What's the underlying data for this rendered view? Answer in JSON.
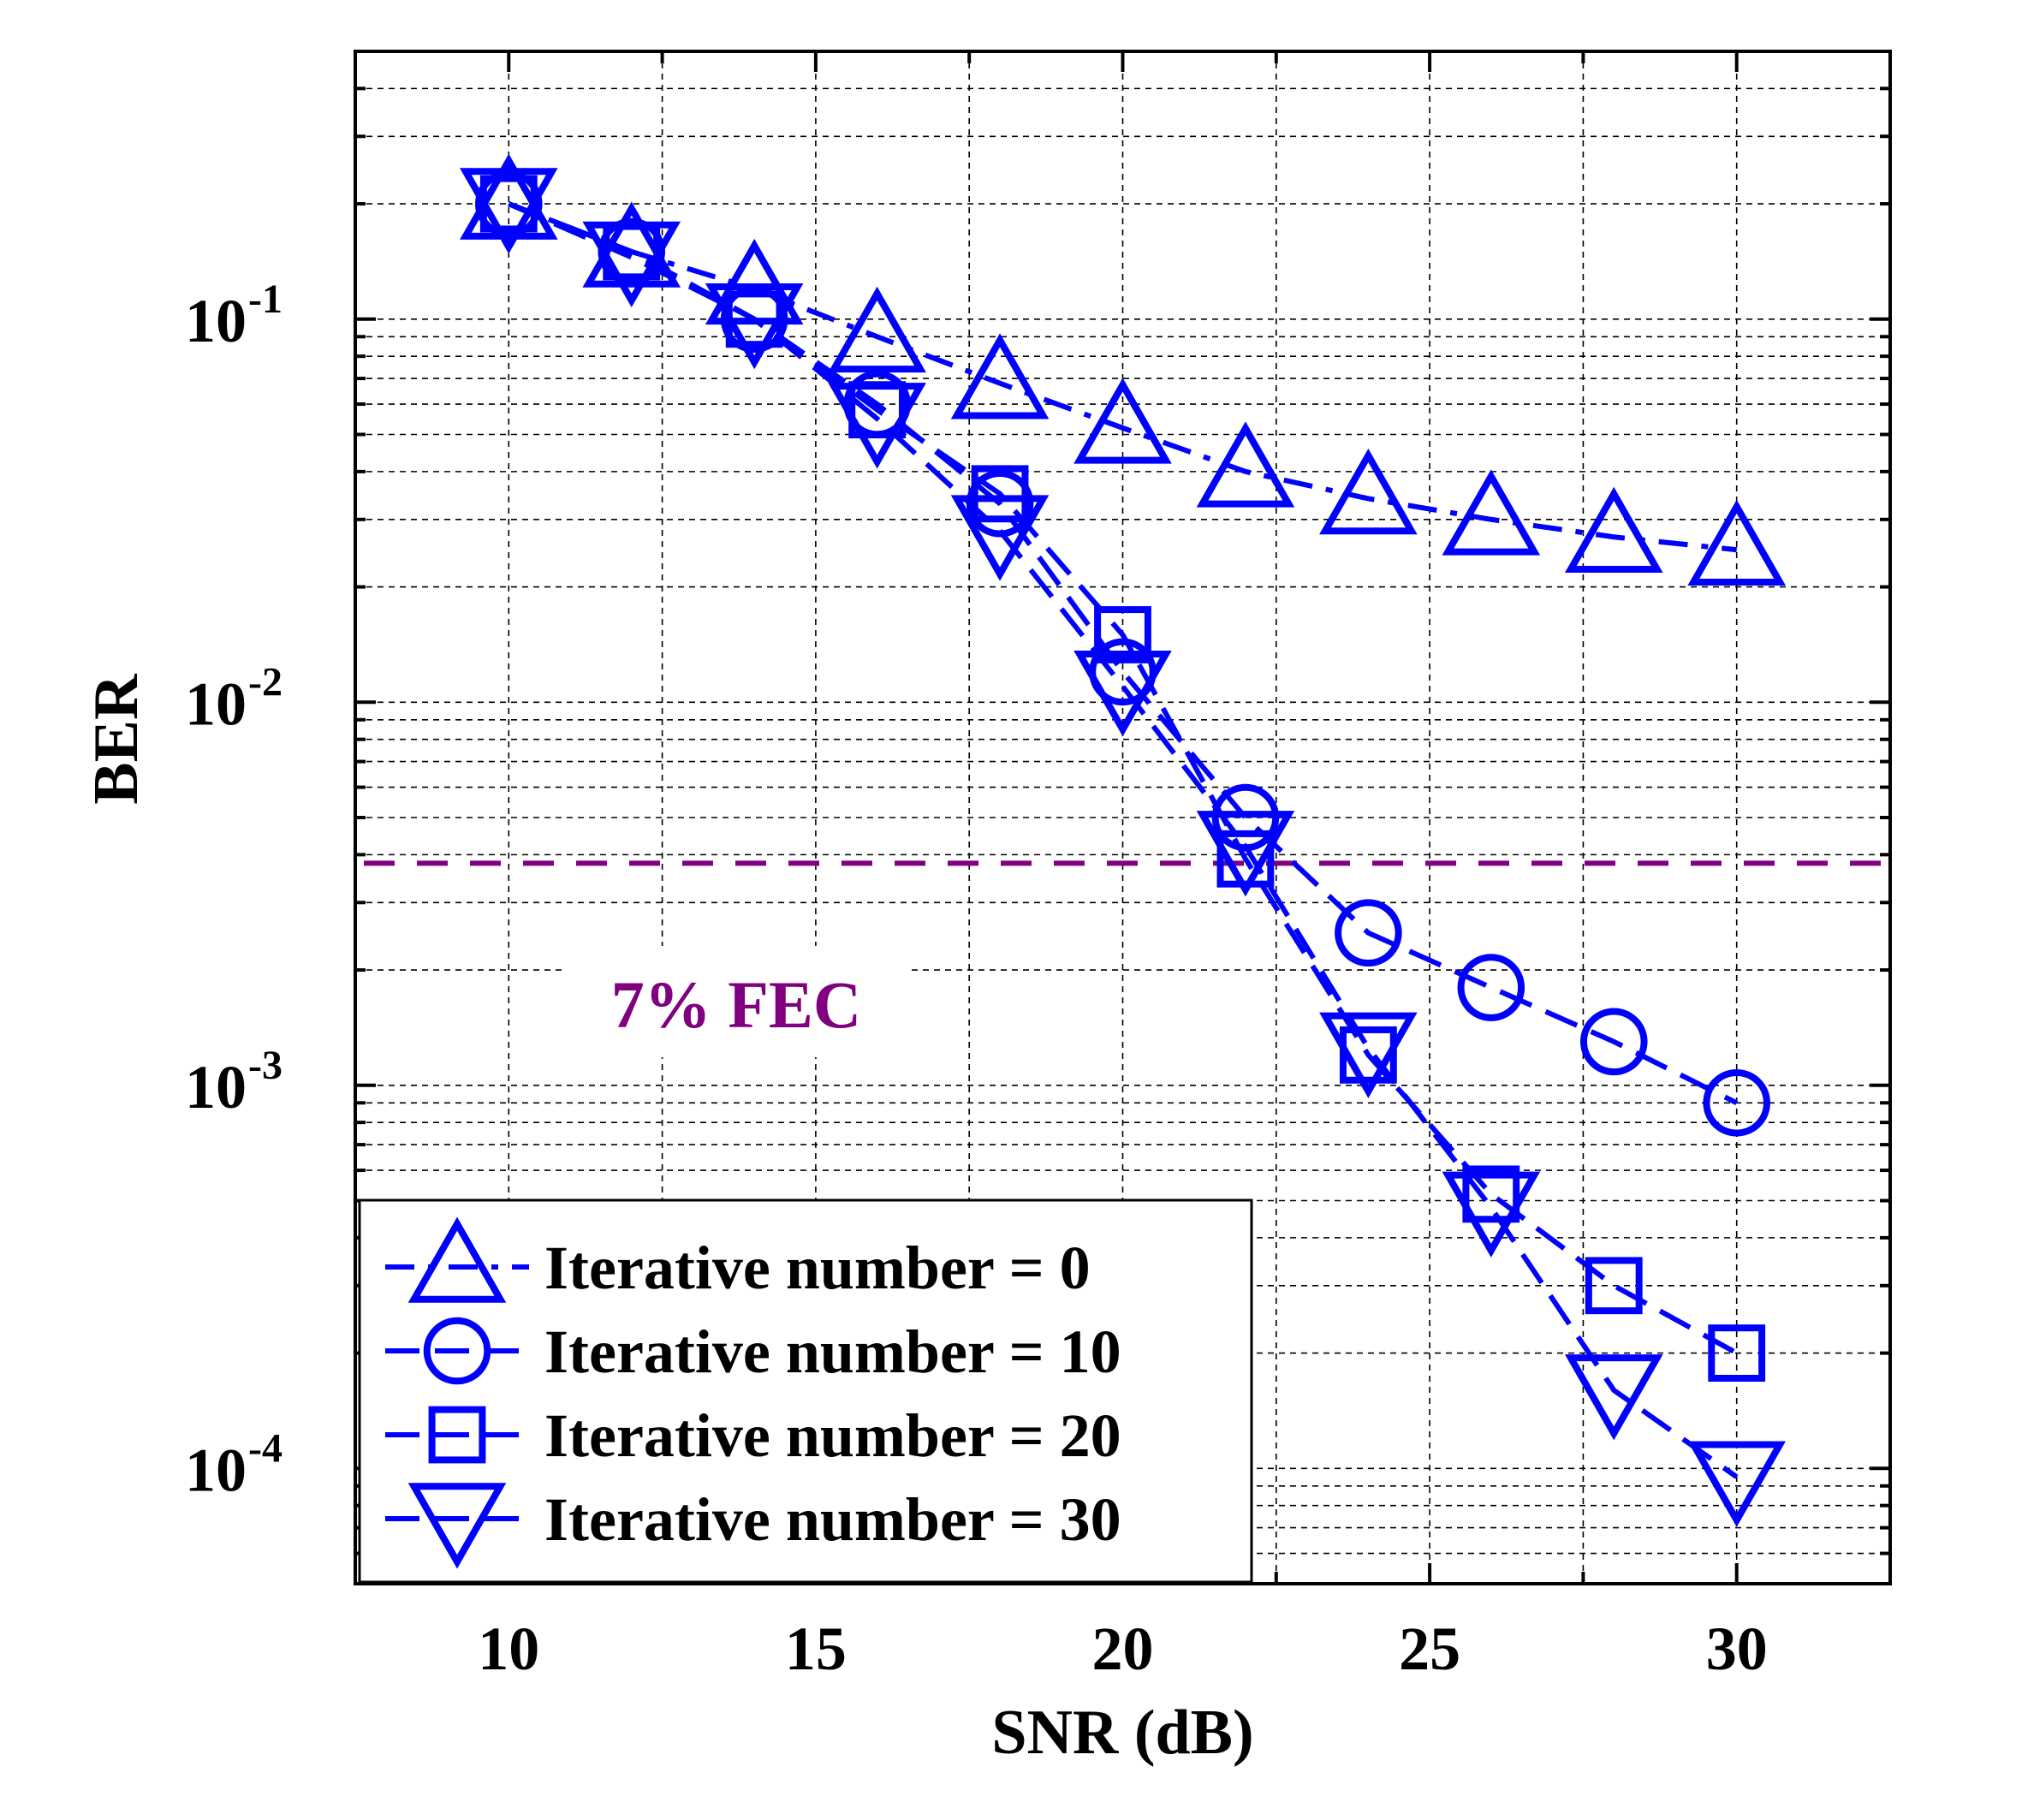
{
  "chart_data": {
    "type": "line",
    "title": "",
    "xlabel": "SNR (dB)",
    "ylabel": "BER",
    "yscale": "log",
    "xlim": [
      7.5,
      32.5
    ],
    "ylim": [
      5e-05,
      0.5
    ],
    "x_ticks": [
      10,
      15,
      20,
      25,
      30
    ],
    "x_tick_labels": [
      "10",
      "15",
      "20",
      "25",
      "30"
    ],
    "y_ticks": [
      {
        "value": 0.1,
        "base": "10",
        "exp": "-1"
      },
      {
        "value": 0.01,
        "base": "10",
        "exp": "-2"
      },
      {
        "value": 0.001,
        "base": "10",
        "exp": "-3"
      },
      {
        "value": 0.0001,
        "base": "10",
        "exp": "-4"
      }
    ],
    "grid": true,
    "x": [
      10,
      12,
      14,
      16,
      18,
      20,
      22,
      24,
      26,
      28,
      30
    ],
    "series": [
      {
        "name": "Iterative number = 0",
        "marker": "triangle-up",
        "dash": "dash-dot",
        "values": [
          0.2,
          0.15,
          0.12,
          0.09,
          0.068,
          0.052,
          0.04,
          0.034,
          0.03,
          0.027,
          0.025
        ]
      },
      {
        "name": "Iterative number = 10",
        "marker": "circle",
        "dash": "dash",
        "values": [
          0.2,
          0.15,
          0.1,
          0.06,
          0.033,
          0.012,
          0.005,
          0.0025,
          0.0018,
          0.0013,
          0.0009
        ]
      },
      {
        "name": "Iterative number = 20",
        "marker": "square",
        "dash": "dash",
        "values": [
          0.2,
          0.15,
          0.1,
          0.058,
          0.035,
          0.015,
          0.0039,
          0.0012,
          0.00052,
          0.0003,
          0.0002
        ]
      },
      {
        "name": "Iterative number = 30",
        "marker": "triangle-down",
        "dash": "dash",
        "values": [
          0.2,
          0.145,
          0.1,
          0.055,
          0.028,
          0.011,
          0.0042,
          0.00125,
          0.00048,
          0.00016,
          9.5e-05
        ]
      }
    ],
    "threshold": {
      "label": "7% FEC",
      "value": 0.0038,
      "color": "#800080"
    },
    "series_color": "#0000ff",
    "legend_position": "bottom-left"
  }
}
